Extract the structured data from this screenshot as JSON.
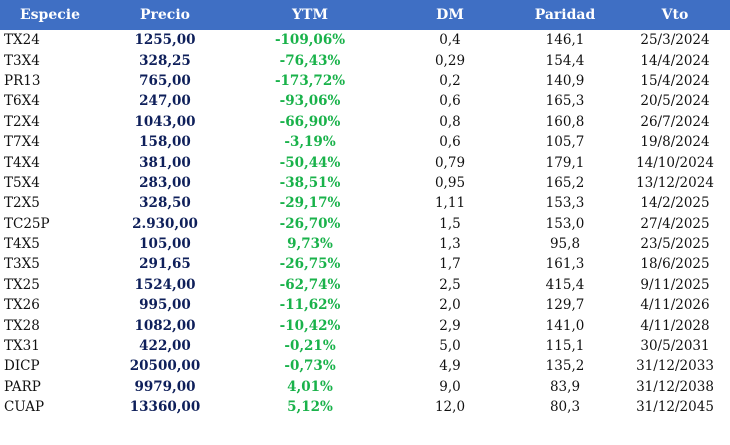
{
  "header": {
    "especie": "Especie",
    "precio": "Precio",
    "ytm": "YTM",
    "dm": "DM",
    "paridad": "Paridad",
    "vto": "Vto"
  },
  "colors": {
    "header_bg": "#3f6fc4",
    "price": "#0e1f5a",
    "ytm": "#19b24a"
  },
  "rows": [
    {
      "especie": "TX24",
      "precio": "1255,00",
      "ytm": "-109,06%",
      "dm": "0,4",
      "paridad": "146,1",
      "vto": "25/3/2024"
    },
    {
      "especie": "T3X4",
      "precio": "328,25",
      "ytm": "-76,43%",
      "dm": "0,29",
      "paridad": "154,4",
      "vto": "14/4/2024"
    },
    {
      "especie": "PR13",
      "precio": "765,00",
      "ytm": "-173,72%",
      "dm": "0,2",
      "paridad": "140,9",
      "vto": "15/4/2024"
    },
    {
      "especie": "T6X4",
      "precio": "247,00",
      "ytm": "-93,06%",
      "dm": "0,6",
      "paridad": "165,3",
      "vto": "20/5/2024"
    },
    {
      "especie": "T2X4",
      "precio": "1043,00",
      "ytm": "-66,90%",
      "dm": "0,8",
      "paridad": "160,8",
      "vto": "26/7/2024"
    },
    {
      "especie": "T7X4",
      "precio": "158,00",
      "ytm": "-3,19%",
      "dm": "0,6",
      "paridad": "105,7",
      "vto": "19/8/2024"
    },
    {
      "especie": "T4X4",
      "precio": "381,00",
      "ytm": "-50,44%",
      "dm": "0,79",
      "paridad": "179,1",
      "vto": "14/10/2024"
    },
    {
      "especie": "T5X4",
      "precio": "283,00",
      "ytm": "-38,51%",
      "dm": "0,95",
      "paridad": "165,2",
      "vto": "13/12/2024"
    },
    {
      "especie": "T2X5",
      "precio": "328,50",
      "ytm": "-29,17%",
      "dm": "1,11",
      "paridad": "153,3",
      "vto": "14/2/2025"
    },
    {
      "especie": "TC25P",
      "precio": "2.930,00",
      "ytm": "-26,70%",
      "dm": "1,5",
      "paridad": "153,0",
      "vto": "27/4/2025"
    },
    {
      "especie": "T4X5",
      "precio": "105,00",
      "ytm": "9,73%",
      "dm": "1,3",
      "paridad": "95,8",
      "vto": "23/5/2025"
    },
    {
      "especie": "T3X5",
      "precio": "291,65",
      "ytm": "-26,75%",
      "dm": "1,7",
      "paridad": "161,3",
      "vto": "18/6/2025"
    },
    {
      "especie": "TX25",
      "precio": "1524,00",
      "ytm": "-62,74%",
      "dm": "2,5",
      "paridad": "415,4",
      "vto": "9/11/2025"
    },
    {
      "especie": "TX26",
      "precio": "995,00",
      "ytm": "-11,62%",
      "dm": "2,0",
      "paridad": "129,7",
      "vto": "4/11/2026"
    },
    {
      "especie": "TX28",
      "precio": "1082,00",
      "ytm": "-10,42%",
      "dm": "2,9",
      "paridad": "141,0",
      "vto": "4/11/2028"
    },
    {
      "especie": "TX31",
      "precio": "422,00",
      "ytm": "-0,21%",
      "dm": "5,0",
      "paridad": "115,1",
      "vto": "30/5/2031"
    },
    {
      "especie": "DICP",
      "precio": "20500,00",
      "ytm": "-0,73%",
      "dm": "4,9",
      "paridad": "135,2",
      "vto": "31/12/2033"
    },
    {
      "especie": "PARP",
      "precio": "9979,00",
      "ytm": "4,01%",
      "dm": "9,0",
      "paridad": "83,9",
      "vto": "31/12/2038"
    },
    {
      "especie": "CUAP",
      "precio": "13360,00",
      "ytm": "5,12%",
      "dm": "12,0",
      "paridad": "80,3",
      "vto": "31/12/2045"
    }
  ]
}
